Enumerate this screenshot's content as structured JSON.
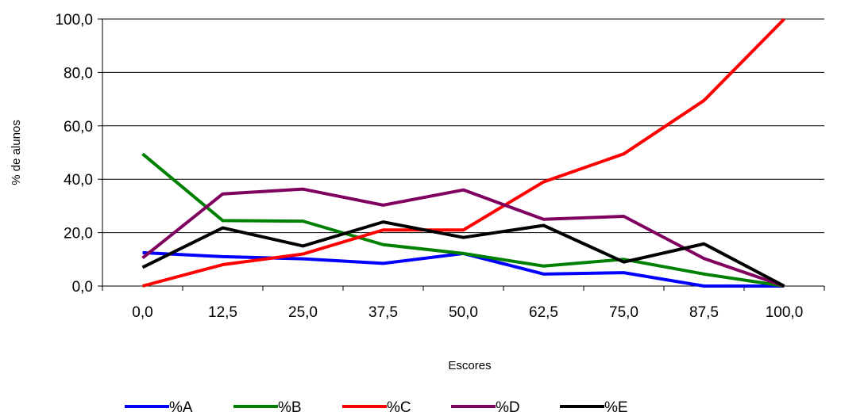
{
  "chart_data": {
    "type": "line",
    "title": "",
    "xlabel": "Escores",
    "ylabel": "% de alunos",
    "x": [
      "0,0",
      "12,5",
      "25,0",
      "37,5",
      "50,0",
      "62,5",
      "75,0",
      "87,5",
      "100,0"
    ],
    "ylim": [
      0,
      100
    ],
    "yticks": [
      "0,0",
      "20,0",
      "40,0",
      "60,0",
      "80,0",
      "100,0"
    ],
    "yticks_values": [
      0,
      20,
      40,
      60,
      80,
      100
    ],
    "grid": "horizontal",
    "legend": "bottom",
    "series": [
      {
        "name": "%A",
        "color": "#0000ff",
        "values": [
          12.5,
          11,
          10.2,
          8.5,
          12.2,
          4.5,
          5,
          0,
          0
        ]
      },
      {
        "name": "%B",
        "color": "#008000",
        "values": [
          49.5,
          24.5,
          24.3,
          15.5,
          12.2,
          7.5,
          10,
          4.5,
          0
        ]
      },
      {
        "name": "%C",
        "color": "#ff0000",
        "values": [
          0,
          8,
          12,
          21,
          21,
          39,
          49.5,
          69.5,
          100
        ]
      },
      {
        "name": "%D",
        "color": "#800060",
        "values": [
          10.5,
          34.5,
          36.3,
          30.3,
          36,
          25,
          26.1,
          10.3,
          0
        ]
      },
      {
        "name": "%E",
        "color": "#000000",
        "values": [
          7,
          21.8,
          15,
          24,
          18.2,
          22.7,
          9,
          15.8,
          0
        ]
      }
    ]
  }
}
